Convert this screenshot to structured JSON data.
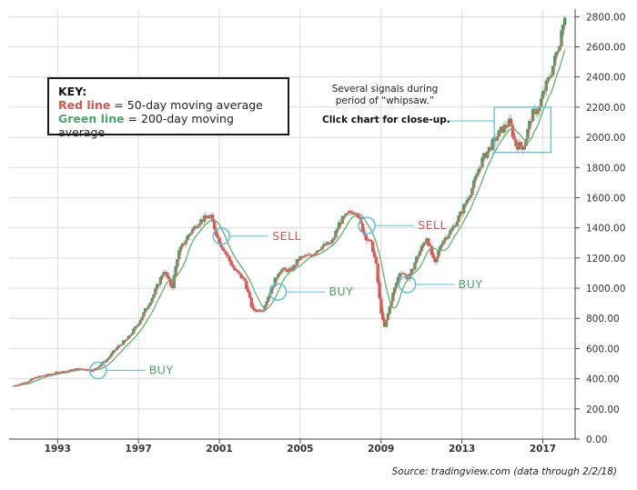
{
  "chart_data": {
    "type": "candlestick",
    "title": "",
    "xlabel": "",
    "ylabel": "",
    "ylim": [
      0,
      2850
    ],
    "xlim": [
      1990.6,
      2018.6
    ],
    "grid": true,
    "y_ticks": [
      "0.00",
      "200.00",
      "400.00",
      "600.00",
      "800.00",
      "1000.00",
      "1200.00",
      "1400.00",
      "1600.00",
      "1800.00",
      "2000.00",
      "2200.00",
      "2400.00",
      "2600.00",
      "2800.00"
    ],
    "y_tick_values": [
      0,
      200,
      400,
      600,
      800,
      1000,
      1200,
      1400,
      1600,
      1800,
      2000,
      2200,
      2400,
      2600,
      2800
    ],
    "x_ticks": [
      "1993",
      "1997",
      "2001",
      "2005",
      "2009",
      "2013",
      "2017"
    ],
    "x_tick_values": [
      1993,
      1997,
      2001,
      2005,
      2009,
      2013,
      2017
    ],
    "price_anchors": [
      [
        1990.8,
        350
      ],
      [
        1991.5,
        380
      ],
      [
        1992.0,
        410
      ],
      [
        1993.0,
        440
      ],
      [
        1994.0,
        465
      ],
      [
        1994.8,
        455
      ],
      [
        1995.5,
        530
      ],
      [
        1996.0,
        610
      ],
      [
        1996.5,
        665
      ],
      [
        1997.0,
        760
      ],
      [
        1997.8,
        960
      ],
      [
        1998.3,
        1120
      ],
      [
        1998.7,
        1000
      ],
      [
        1999.0,
        1230
      ],
      [
        1999.5,
        1350
      ],
      [
        2000.0,
        1440
      ],
      [
        2000.6,
        1480
      ],
      [
        2001.0,
        1320
      ],
      [
        2001.4,
        1220
      ],
      [
        2001.8,
        1120
      ],
      [
        2002.3,
        1050
      ],
      [
        2002.7,
        850
      ],
      [
        2003.2,
        860
      ],
      [
        2003.6,
        990
      ],
      [
        2004.0,
        1120
      ],
      [
        2004.6,
        1120
      ],
      [
        2005.0,
        1200
      ],
      [
        2005.6,
        1220
      ],
      [
        2006.0,
        1270
      ],
      [
        2006.6,
        1300
      ],
      [
        2007.0,
        1440
      ],
      [
        2007.5,
        1500
      ],
      [
        2007.8,
        1520
      ],
      [
        2008.2,
        1360
      ],
      [
        2008.6,
        1280
      ],
      [
        2008.8,
        1150
      ],
      [
        2009.0,
        880
      ],
      [
        2009.2,
        730
      ],
      [
        2009.6,
        950
      ],
      [
        2010.0,
        1120
      ],
      [
        2010.4,
        1060
      ],
      [
        2010.8,
        1200
      ],
      [
        2011.3,
        1340
      ],
      [
        2011.7,
        1150
      ],
      [
        2012.0,
        1300
      ],
      [
        2012.6,
        1400
      ],
      [
        2013.0,
        1500
      ],
      [
        2013.6,
        1680
      ],
      [
        2014.0,
        1840
      ],
      [
        2014.5,
        1950
      ],
      [
        2015.0,
        2050
      ],
      [
        2015.4,
        2100
      ],
      [
        2015.7,
        1950
      ],
      [
        2016.1,
        1940
      ],
      [
        2016.5,
        2150
      ],
      [
        2016.9,
        2200
      ],
      [
        2017.0,
        2270
      ],
      [
        2017.5,
        2450
      ],
      [
        2017.9,
        2650
      ],
      [
        2018.1,
        2820
      ]
    ],
    "moving_averages": [
      {
        "name": "50-day moving average",
        "color": "#e06666"
      },
      {
        "name": "200-day moving average",
        "color": "#6ab47a"
      }
    ],
    "signals": [
      {
        "label": "BUY",
        "x": 1995.0,
        "y": 455,
        "color": "#4ca56b"
      },
      {
        "label": "SELL",
        "x": 2001.1,
        "y": 1345,
        "color": "#d9534f"
      },
      {
        "label": "BUY",
        "x": 2003.9,
        "y": 975,
        "color": "#4ca56b"
      },
      {
        "label": "SELL",
        "x": 2008.3,
        "y": 1415,
        "color": "#d9534f"
      },
      {
        "label": "BUY",
        "x": 2010.3,
        "y": 1025,
        "color": "#4ca56b"
      }
    ],
    "whipsaw_box": {
      "x0": 2014.6,
      "x1": 2017.4,
      "y0": 1900,
      "y1": 2200
    },
    "colors": {
      "up": "#3da35d",
      "down": "#d9534f",
      "ma_fast": "#e06666",
      "ma_slow": "#6ab47a",
      "signal_circle": "#5bc0de",
      "grid": "#dcdcdc",
      "axis": "#444444"
    }
  },
  "key": {
    "title": "KEY:",
    "red_name": "Red line",
    "red_desc": " = 50-day moving average",
    "green_name": "Green line",
    "green_desc": " = 200-day moving average"
  },
  "whipsaw_note": "Several signals during period of “whipsaw.”",
  "click_note": "Click chart for close-up.",
  "source": "Source: tradingview.com (data through 2/2/18)"
}
